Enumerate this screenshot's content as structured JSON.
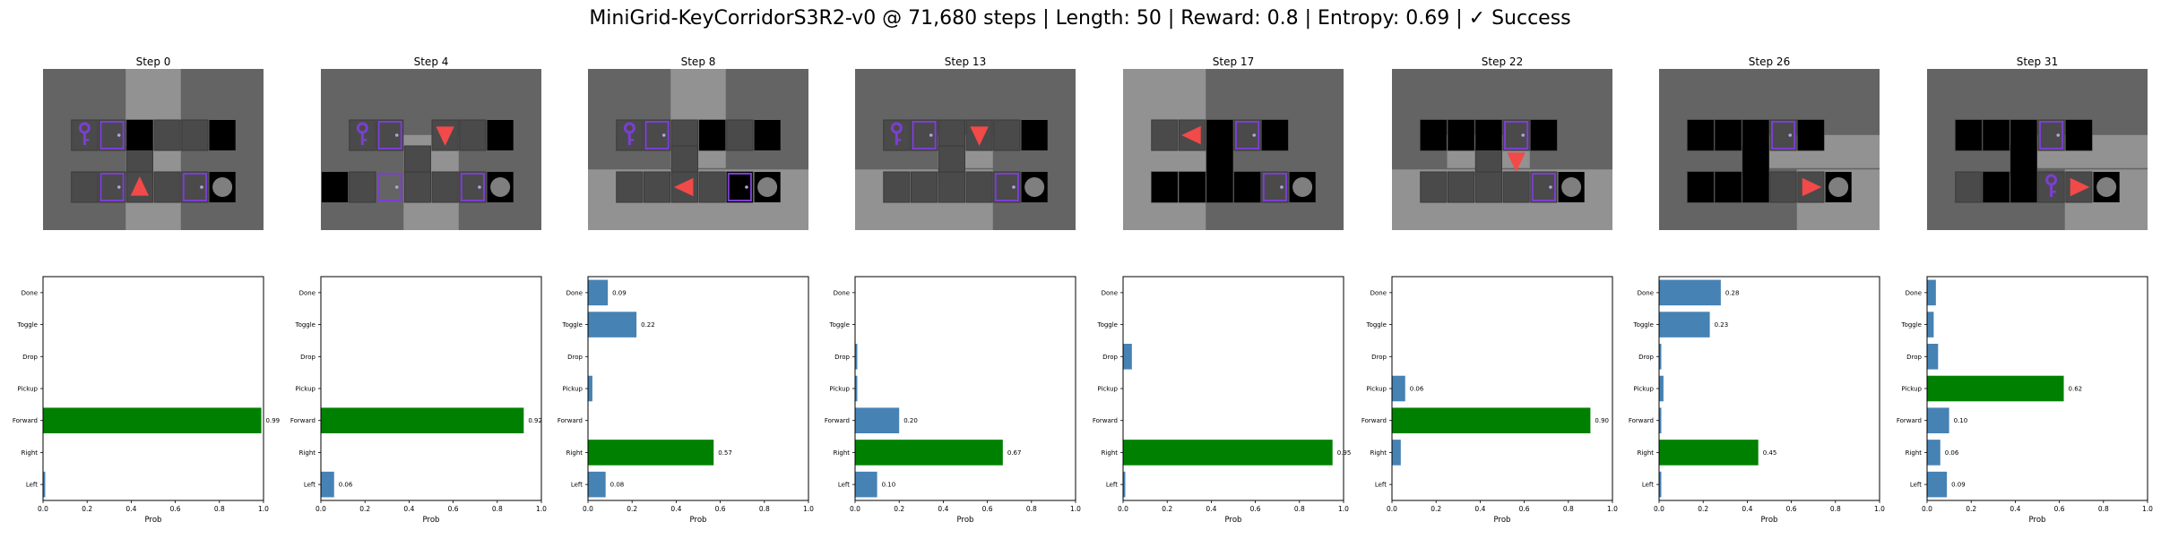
{
  "figure": {
    "title": "MiniGrid-KeyCorridorS3R2-v0 @ 71,680 steps | Length: 50 | Reward: 0.8 | Entropy: 0.69 | ✓ Success"
  },
  "colors": {
    "default_bar": "#4682b4",
    "chosen_bar": "#008000",
    "wall": "#646464",
    "floor_visible": "#929292",
    "cell_black": "#000000",
    "door_purple": "#7b3fd0",
    "agent_red": "#f24949",
    "ball_grey": "#7f7f7f"
  },
  "chart_data": [
    {
      "type": "bar",
      "orientation": "horizontal",
      "title": "Step 0",
      "xlabel": "Prob",
      "xlim": [
        0,
        1
      ],
      "xticks": [
        "0.0",
        "0.2",
        "0.4",
        "0.6",
        "0.8",
        "1.0"
      ],
      "categories": [
        "Left",
        "Right",
        "Forward",
        "Pickup",
        "Drop",
        "Toggle",
        "Done"
      ],
      "values": [
        0.01,
        0,
        0.99,
        0,
        0,
        0,
        0
      ],
      "chosen": "Forward",
      "value_labels": [
        "",
        "",
        "0.99",
        "",
        "",
        "",
        ""
      ]
    },
    {
      "type": "bar",
      "orientation": "horizontal",
      "title": "Step 4",
      "xlabel": "Prob",
      "xlim": [
        0,
        1
      ],
      "xticks": [
        "0.0",
        "0.2",
        "0.4",
        "0.6",
        "0.8",
        "1.0"
      ],
      "categories": [
        "Left",
        "Right",
        "Forward",
        "Pickup",
        "Drop",
        "Toggle",
        "Done"
      ],
      "values": [
        0.06,
        0,
        0.92,
        0,
        0,
        0,
        0
      ],
      "chosen": "Forward",
      "value_labels": [
        "0.06",
        "",
        "0.92",
        "",
        "",
        "",
        ""
      ]
    },
    {
      "type": "bar",
      "orientation": "horizontal",
      "title": "Step 8",
      "xlabel": "Prob",
      "xlim": [
        0,
        1
      ],
      "xticks": [
        "0.0",
        "0.2",
        "0.4",
        "0.6",
        "0.8",
        "1.0"
      ],
      "categories": [
        "Left",
        "Right",
        "Forward",
        "Pickup",
        "Drop",
        "Toggle",
        "Done"
      ],
      "values": [
        0.08,
        0.57,
        0,
        0.02,
        0,
        0.22,
        0.09
      ],
      "chosen": "Right",
      "value_labels": [
        "0.08",
        "0.57",
        "",
        "",
        "",
        "0.22",
        "0.09"
      ]
    },
    {
      "type": "bar",
      "orientation": "horizontal",
      "title": "Step 13",
      "xlabel": "Prob",
      "xlim": [
        0,
        1
      ],
      "xticks": [
        "0.0",
        "0.2",
        "0.4",
        "0.6",
        "0.8",
        "1.0"
      ],
      "categories": [
        "Left",
        "Right",
        "Forward",
        "Pickup",
        "Drop",
        "Toggle",
        "Done"
      ],
      "values": [
        0.1,
        0.67,
        0.2,
        0.01,
        0.01,
        0,
        0
      ],
      "chosen": "Right",
      "value_labels": [
        "0.10",
        "0.67",
        "0.20",
        "",
        "",
        "",
        ""
      ]
    },
    {
      "type": "bar",
      "orientation": "horizontal",
      "title": "Step 17",
      "xlabel": "Prob",
      "xlim": [
        0,
        1
      ],
      "xticks": [
        "0.0",
        "0.2",
        "0.4",
        "0.6",
        "0.8",
        "1.0"
      ],
      "categories": [
        "Left",
        "Right",
        "Forward",
        "Pickup",
        "Drop",
        "Toggle",
        "Done"
      ],
      "values": [
        0.01,
        0.95,
        0,
        0,
        0.04,
        0,
        0
      ],
      "chosen": "Right",
      "value_labels": [
        "",
        "0.95",
        "",
        "",
        "",
        "",
        ""
      ]
    },
    {
      "type": "bar",
      "orientation": "horizontal",
      "title": "Step 22",
      "xlabel": "Prob",
      "xlim": [
        0,
        1
      ],
      "xticks": [
        "0.0",
        "0.2",
        "0.4",
        "0.6",
        "0.8",
        "1.0"
      ],
      "categories": [
        "Left",
        "Right",
        "Forward",
        "Pickup",
        "Drop",
        "Toggle",
        "Done"
      ],
      "values": [
        0,
        0.04,
        0.9,
        0.06,
        0,
        0,
        0
      ],
      "chosen": "Forward",
      "value_labels": [
        "",
        "",
        "0.90",
        "0.06",
        "",
        "",
        ""
      ]
    },
    {
      "type": "bar",
      "orientation": "horizontal",
      "title": "Step 26",
      "xlabel": "Prob",
      "xlim": [
        0,
        1
      ],
      "xticks": [
        "0.0",
        "0.2",
        "0.4",
        "0.6",
        "0.8",
        "1.0"
      ],
      "categories": [
        "Left",
        "Right",
        "Forward",
        "Pickup",
        "Drop",
        "Toggle",
        "Done"
      ],
      "values": [
        0.01,
        0.45,
        0.01,
        0.02,
        0.01,
        0.23,
        0.28
      ],
      "chosen": "Right",
      "value_labels": [
        "",
        "0.45",
        "",
        "",
        "",
        "0.23",
        "0.28"
      ]
    },
    {
      "type": "bar",
      "orientation": "horizontal",
      "title": "Step 31",
      "xlabel": "Prob",
      "xlim": [
        0,
        1
      ],
      "xticks": [
        "0.0",
        "0.2",
        "0.4",
        "0.6",
        "0.8",
        "1.0"
      ],
      "categories": [
        "Left",
        "Right",
        "Forward",
        "Pickup",
        "Drop",
        "Toggle",
        "Done"
      ],
      "values": [
        0.09,
        0.06,
        0.1,
        0.62,
        0.05,
        0.03,
        0.04
      ],
      "chosen": "Pickup",
      "value_labels": [
        "0.09",
        "0.06",
        "0.10",
        "0.62",
        "",
        "",
        ""
      ]
    }
  ]
}
